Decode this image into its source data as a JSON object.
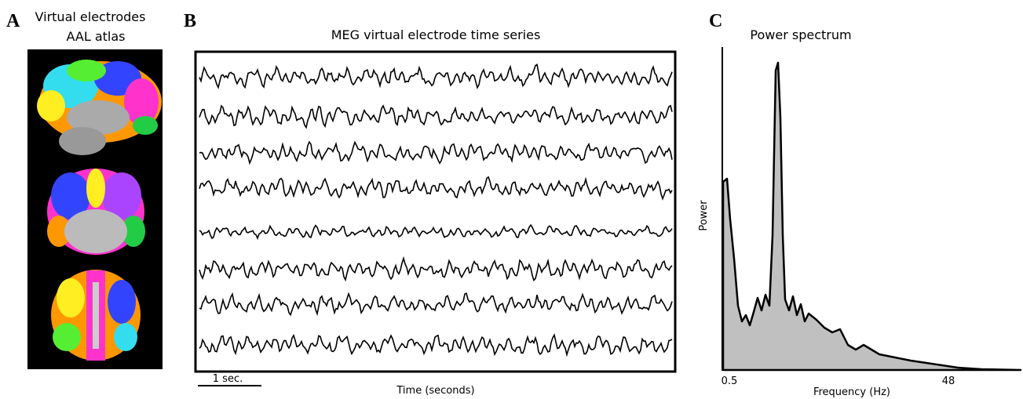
{
  "panels": [
    {
      "letter": "A",
      "title": [
        "Virtual electrodes",
        "AAL atlas"
      ]
    },
    {
      "letter": "B",
      "title": "MEG virtual electrode time series",
      "scale_bar": "1 sec.",
      "x_label": "Time (seconds)"
    },
    {
      "letter": "C",
      "title": "Power spectrum",
      "y_label": "Power",
      "x_label": "Frequency (Hz)",
      "x_ticks": [
        "0.5",
        "48"
      ]
    }
  ]
}
